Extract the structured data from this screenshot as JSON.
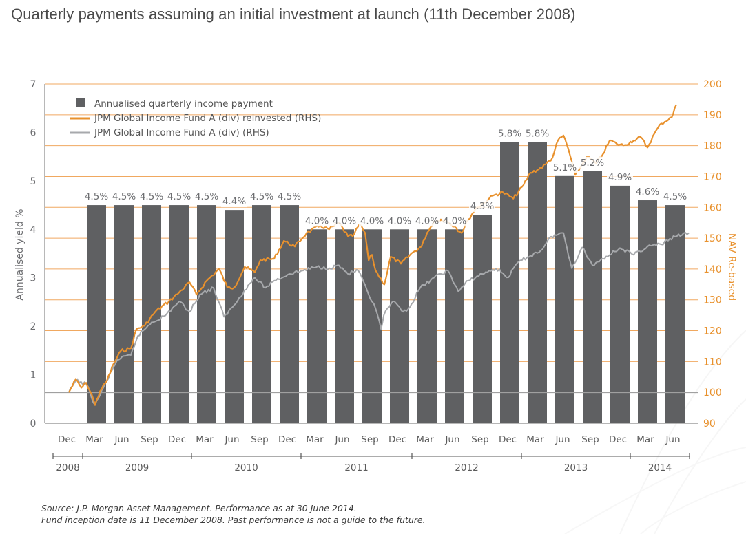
{
  "title": "Quarterly payments assuming an initial investment at launch (11th December 2008)",
  "footer": {
    "line1": "Source: J.P. Morgan Asset Management. Performance as at 30 June 2014.",
    "line2": "Fund inception date is 11 December 2008. Past performance is not a guide to the future."
  },
  "colors": {
    "bar": "#5f6062",
    "reinvested": "#e8912d",
    "distributing": "#a7a9ac",
    "grid": "#f0a860",
    "baseline": "#a0a0a0",
    "axis": "#8a8a8a"
  },
  "chart_data": {
    "type": "bar+line",
    "title": "Quarterly payments assuming an initial investment at launch (11th December 2008)",
    "ylabel_left": "Annualised  yield %",
    "ylabel_right": "NAV Re-based",
    "ylim_left": [
      0,
      7
    ],
    "ylim_right": [
      90,
      200
    ],
    "yticks_left": [
      "0",
      "1",
      "2",
      "3",
      "4",
      "5",
      "6",
      "7"
    ],
    "yticks_right": [
      "90",
      "100",
      "110",
      "120",
      "130",
      "140",
      "150",
      "160",
      "170",
      "180",
      "190",
      "200"
    ],
    "grid": "horizontal at right-axis ticks",
    "baseline_value": 100,
    "legend_position": "top-left",
    "legend": [
      {
        "label": "Annualised quarterly income payment",
        "type": "bar"
      },
      {
        "label": "JPM Global Income Fund A (div) reinvested (RHS)",
        "type": "line"
      },
      {
        "label": "JPM Global Income Fund A (div) (RHS)",
        "type": "line"
      }
    ],
    "x_month_labels": [
      "Dec",
      "Mar",
      "Jun",
      "Sep",
      "Dec",
      "Mar",
      "Jun",
      "Sep",
      "Dec",
      "Mar",
      "Jun",
      "Sep",
      "Dec",
      "Mar",
      "Jun",
      "Sep",
      "Dec",
      "Mar",
      "Jun",
      "Sep",
      "Dec",
      "Mar",
      "Jun"
    ],
    "x_year_labels": [
      "2008",
      "2009",
      "2010",
      "2011",
      "2012",
      "2013",
      "2014"
    ],
    "categories": [
      "Mar 2009",
      "Jun 2009",
      "Sep 2009",
      "Dec 2009",
      "Mar 2010",
      "Jun 2010",
      "Sep 2010",
      "Dec 2010",
      "Mar 2011",
      "Jun 2011",
      "Sep 2011",
      "Dec 2011",
      "Mar 2012",
      "Jun 2012",
      "Sep 2012",
      "Dec 2012",
      "Mar 2013",
      "Jun 2013",
      "Sep 2013",
      "Dec 2013",
      "Mar 2014",
      "Jun 2014"
    ],
    "bars": {
      "name": "Annualised quarterly income payment",
      "values": [
        4.5,
        4.5,
        4.5,
        4.5,
        4.5,
        4.4,
        4.5,
        4.5,
        4.0,
        4.0,
        4.0,
        4.0,
        4.0,
        4.0,
        4.3,
        5.8,
        5.8,
        5.1,
        5.2,
        4.9,
        4.6,
        4.5
      ],
      "labels": [
        "4.5%",
        "4.5%",
        "4.5%",
        "4.5%",
        "4.5%",
        "4.4%",
        "4.5%",
        "4.5%",
        "4.0%",
        "4.0%",
        "4.0%",
        "4.0%",
        "4.0%",
        "4.0%",
        "4.3%",
        "5.8%",
        "5.8%",
        "5.1%",
        "5.2%",
        "4.9%",
        "4.6%",
        "4.5%"
      ]
    },
    "series": [
      {
        "name": "JPM Global Income Fund A (div) reinvested (RHS)",
        "axis": "right",
        "x_quarters_since_dec2008": [
          0,
          0.25,
          0.45,
          0.63,
          0.83,
          0.95,
          1.13,
          1.38,
          1.63,
          1.88,
          2.25,
          2.45,
          2.75,
          3.13,
          3.63,
          4.0,
          4.38,
          4.63,
          5.0,
          5.45,
          5.75,
          6.0,
          6.38,
          6.75,
          6.95,
          7.45,
          7.8,
          8.2,
          8.63,
          9.13,
          9.45,
          9.8,
          10.13,
          10.3,
          10.55,
          10.75,
          10.88,
          11.0,
          11.13,
          11.45,
          11.68,
          12.05,
          12.5,
          12.8,
          13.0,
          13.25,
          13.5,
          13.7,
          14.0,
          14.25,
          14.5,
          14.75,
          15.25,
          15.45,
          15.75,
          16.13,
          16.5,
          16.75,
          17.0,
          17.3,
          17.55,
          17.75,
          17.95,
          18.13,
          18.38,
          18.63,
          18.8,
          19.13,
          19.38,
          19.63,
          19.88,
          20.13,
          20.5,
          20.75,
          21.0,
          21.25,
          21.5,
          21.88,
          22.05
        ],
        "values": [
          100,
          104.2,
          101.5,
          103.1,
          99.3,
          95.9,
          100.4,
          103.8,
          109.4,
          113.4,
          114.3,
          120.5,
          121.6,
          126.1,
          129.5,
          132.4,
          135.7,
          131.7,
          136.2,
          140,
          134,
          134,
          140.7,
          138.9,
          142.9,
          143.3,
          149.1,
          147.3,
          151.7,
          154,
          152.9,
          154.9,
          150.6,
          150.6,
          154.5,
          151.7,
          142.8,
          144.6,
          139.5,
          135,
          144,
          141.7,
          145.5,
          147.3,
          151.7,
          155.4,
          156.1,
          155.6,
          153.8,
          151.7,
          156.1,
          159.4,
          162.8,
          164,
          164.9,
          162.8,
          167.2,
          171.2,
          172.1,
          173.9,
          176.1,
          181.7,
          183.3,
          178.8,
          170.5,
          173.9,
          176.5,
          174.3,
          177.2,
          181.7,
          180.6,
          180.1,
          181.7,
          182.8,
          179.4,
          183.9,
          187.2,
          189.2,
          193.3
        ]
      },
      {
        "name": "JPM Global Income Fund A (div) (RHS)",
        "axis": "right",
        "x_quarters_since_dec2008": [
          0,
          0.25,
          0.63,
          0.95,
          1.38,
          1.75,
          2.25,
          2.5,
          3.0,
          3.5,
          4.0,
          4.38,
          4.75,
          5.25,
          5.63,
          6.0,
          6.38,
          6.75,
          7.13,
          7.45,
          8.0,
          8.5,
          9.0,
          9.45,
          9.8,
          10.13,
          10.5,
          10.88,
          11.13,
          11.33,
          11.43,
          11.75,
          12.13,
          12.38,
          12.75,
          13.25,
          13.75,
          14.13,
          14.5,
          15.0,
          15.5,
          15.95,
          16.25,
          16.63,
          17.13,
          17.5,
          17.95,
          18.25,
          18.63,
          19.0,
          19.5,
          20.0,
          20.5,
          21.0,
          21.5,
          22.0,
          22.5
        ],
        "values": [
          100,
          103.8,
          102.7,
          95.9,
          103.8,
          110.5,
          112.1,
          118.3,
          122.7,
          124.9,
          129.5,
          126.1,
          131.7,
          133.9,
          124.5,
          128.3,
          133.2,
          137.2,
          133.9,
          136.2,
          138.4,
          139.5,
          140.7,
          140.3,
          141.2,
          138.4,
          139.5,
          131.7,
          127.2,
          120.5,
          125,
          129.5,
          126.1,
          127.7,
          133.9,
          137.2,
          139.5,
          132.8,
          136.2,
          138.4,
          140.2,
          137.3,
          141.7,
          143.8,
          146.0,
          150.5,
          151.7,
          140.3,
          147.0,
          141.2,
          144.1,
          146.8,
          144.6,
          147.3,
          148,
          150.5,
          151.7
        ]
      }
    ]
  }
}
